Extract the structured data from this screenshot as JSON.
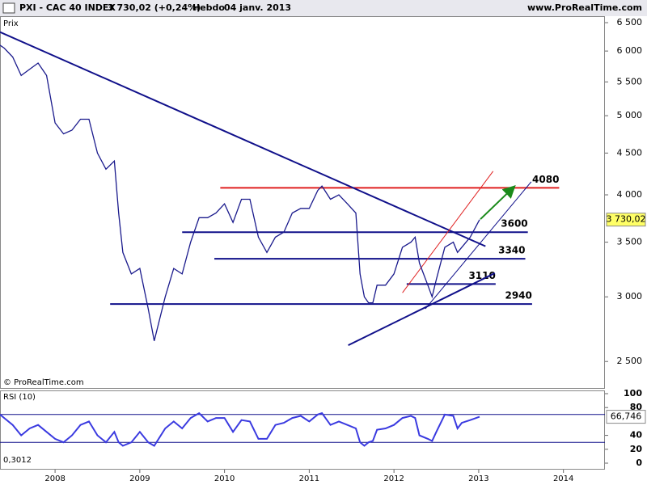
{
  "header": {
    "symbol": "PXI - CAC 40 INDEX",
    "quote": "3 730,02 (+0,24%)",
    "period": "Hebdo",
    "date": "04 janv. 2013",
    "site": "www.ProRealTime.com"
  },
  "chart_data": [
    {
      "type": "line",
      "title": "Prix",
      "credit": "© ProRealTime.com",
      "log_scale": true,
      "xlim": [
        2007.35,
        2014.49
      ],
      "ylim": [
        2320,
        6620
      ],
      "yticks": [
        {
          "value": 2500,
          "label": "2 500"
        },
        {
          "value": 3000,
          "label": "3 000"
        },
        {
          "value": 3500,
          "label": "3 500"
        },
        {
          "value": 4000,
          "label": "4 000"
        },
        {
          "value": 4500,
          "label": "4 500"
        },
        {
          "value": 5000,
          "label": "5 000"
        },
        {
          "value": 5500,
          "label": "5 500"
        },
        {
          "value": 6000,
          "label": "6 000"
        },
        {
          "value": 6500,
          "label": "6 500"
        }
      ],
      "series": [
        {
          "color": "#1a1a8c",
          "x": [
            2007.35,
            2007.4,
            2007.5,
            2007.6,
            2007.7,
            2007.8,
            2007.9,
            2008.0,
            2008.1,
            2008.2,
            2008.3,
            2008.4,
            2008.5,
            2008.6,
            2008.7,
            2008.75,
            2008.8,
            2008.9,
            2009.0,
            2009.1,
            2009.17,
            2009.3,
            2009.4,
            2009.5,
            2009.6,
            2009.7,
            2009.8,
            2009.9,
            2010.0,
            2010.1,
            2010.2,
            2010.3,
            2010.4,
            2010.5,
            2010.6,
            2010.7,
            2010.8,
            2010.9,
            2011.0,
            2011.1,
            2011.15,
            2011.25,
            2011.35,
            2011.45,
            2011.55,
            2011.6,
            2011.65,
            2011.7,
            2011.75,
            2011.8,
            2011.9,
            2012.0,
            2012.1,
            2012.2,
            2012.25,
            2012.3,
            2012.4,
            2012.45,
            2012.5,
            2012.6,
            2012.7,
            2012.75,
            2012.8,
            2012.9,
            2013.01
          ],
          "values": [
            6100,
            6050,
            5900,
            5600,
            5700,
            5800,
            5600,
            4900,
            4750,
            4800,
            4950,
            4950,
            4500,
            4300,
            4400,
            3800,
            3400,
            3200,
            3250,
            2900,
            2650,
            3000,
            3250,
            3200,
            3500,
            3750,
            3750,
            3800,
            3900,
            3700,
            3950,
            3950,
            3550,
            3400,
            3550,
            3600,
            3800,
            3850,
            3850,
            4050,
            4100,
            3950,
            4000,
            3900,
            3800,
            3200,
            3000,
            2950,
            2950,
            3100,
            3100,
            3200,
            3450,
            3500,
            3550,
            3300,
            3100,
            3000,
            3150,
            3450,
            3500,
            3400,
            3450,
            3550,
            3730.02
          ]
        }
      ],
      "last_value": {
        "value": 3730.02,
        "label": "3 730,02",
        "color": "#ffff66"
      },
      "levels": [
        {
          "value": 4080,
          "color": "#e02020",
          "x": [
            2009.95,
            2013.95
          ]
        },
        {
          "value": 3600,
          "color": "#10108a",
          "x": [
            2009.5,
            2013.58
          ]
        },
        {
          "value": 3340,
          "color": "#10108a",
          "x": [
            2009.88,
            2013.55
          ]
        },
        {
          "value": 3110,
          "color": "#10108a",
          "x": [
            2012.15,
            2013.2
          ]
        },
        {
          "value": 2940,
          "color": "#10108a",
          "x": [
            2008.65,
            2013.63
          ]
        }
      ],
      "trendlines": [
        {
          "color": "#10108a",
          "width": 2,
          "x": [
            2007.35,
            2013.08
          ],
          "y": [
            6330,
            3460
          ]
        },
        {
          "color": "#10108a",
          "width": 2,
          "x": [
            2011.46,
            2013.19
          ],
          "y": [
            2617,
            3207
          ]
        },
        {
          "color": "#e02020",
          "width": 1,
          "x": [
            2012.1,
            2013.17
          ],
          "y": [
            3035,
            4275
          ]
        },
        {
          "color": "#10108a",
          "width": 1,
          "x": [
            2012.37,
            2013.62
          ],
          "y": [
            2900,
            4150
          ]
        },
        {
          "color": "#1a8a1a",
          "width": 2,
          "arrow": true,
          "x": [
            2013.02,
            2013.41
          ],
          "y": [
            3734,
            4085
          ]
        }
      ]
    },
    {
      "type": "line",
      "title": "RSI (10)",
      "note": "0,3012",
      "xlim": [
        2007.35,
        2014.49
      ],
      "ylim": [
        0,
        100
      ],
      "yticks": [
        0,
        20,
        40,
        80,
        100
      ],
      "xticks": [
        2008,
        2009,
        2010,
        2011,
        2012,
        2013,
        2014
      ],
      "levels": [
        {
          "value": 70,
          "color": "#10108a"
        },
        {
          "value": 30,
          "color": "#10108a"
        }
      ],
      "series": [
        {
          "color": "#3a3ae0",
          "x": [
            2007.35,
            2007.4,
            2007.5,
            2007.6,
            2007.7,
            2007.8,
            2007.9,
            2008.0,
            2008.1,
            2008.2,
            2008.3,
            2008.4,
            2008.5,
            2008.6,
            2008.7,
            2008.75,
            2008.8,
            2008.9,
            2009.0,
            2009.1,
            2009.17,
            2009.3,
            2009.4,
            2009.5,
            2009.6,
            2009.7,
            2009.8,
            2009.9,
            2010.0,
            2010.1,
            2010.2,
            2010.3,
            2010.4,
            2010.5,
            2010.6,
            2010.7,
            2010.8,
            2010.9,
            2011.0,
            2011.1,
            2011.15,
            2011.25,
            2011.35,
            2011.45,
            2011.55,
            2011.6,
            2011.65,
            2011.7,
            2011.75,
            2011.8,
            2011.9,
            2012.0,
            2012.1,
            2012.2,
            2012.25,
            2012.3,
            2012.4,
            2012.45,
            2012.5,
            2012.6,
            2012.7,
            2012.75,
            2012.8,
            2012.9,
            2013.01
          ],
          "values": [
            70,
            65,
            55,
            40,
            50,
            55,
            45,
            35,
            30,
            40,
            55,
            60,
            40,
            30,
            45,
            30,
            25,
            30,
            45,
            30,
            25,
            50,
            60,
            50,
            65,
            72,
            60,
            65,
            65,
            45,
            62,
            60,
            35,
            35,
            55,
            58,
            65,
            68,
            60,
            70,
            72,
            55,
            60,
            55,
            50,
            30,
            25,
            30,
            32,
            48,
            50,
            55,
            65,
            68,
            65,
            40,
            35,
            32,
            45,
            70,
            68,
            50,
            58,
            62,
            66.746
          ]
        }
      ],
      "last_value": {
        "value": 66.746,
        "label": "66,746",
        "color": "#ffffff"
      }
    }
  ]
}
